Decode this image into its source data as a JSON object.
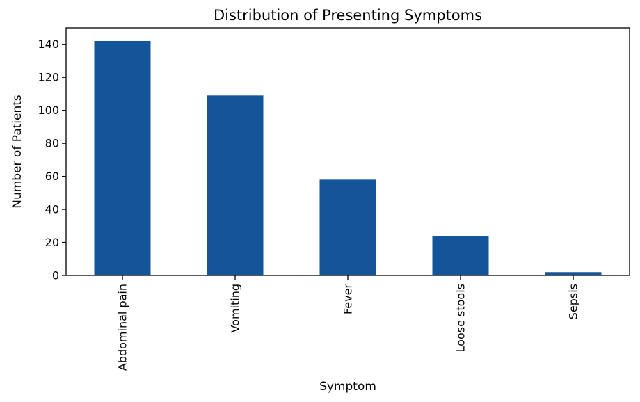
{
  "chart_data": {
    "type": "bar",
    "title": "Distribution of Presenting Symptoms",
    "xlabel": "Symptom",
    "ylabel": "Number of Patients",
    "categories": [
      "Abdominal pain",
      "Vomiting",
      "Fever",
      "Loose stools",
      "Sepsis"
    ],
    "values": [
      142,
      109,
      58,
      24,
      2
    ],
    "ylim": [
      0,
      150
    ],
    "yticks": [
      0,
      20,
      40,
      60,
      80,
      100,
      120,
      140
    ],
    "bar_color": "#14559a",
    "grid": false,
    "legend": "none"
  }
}
